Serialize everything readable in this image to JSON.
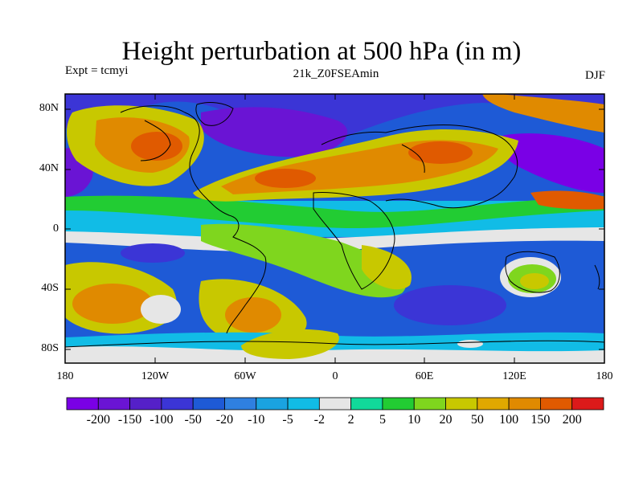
{
  "title": "Height perturbation at 500 hPa (in m)",
  "left_subtitle": "Expt = tcmyi",
  "center_subtitle": "21k_Z0FSEAmin",
  "right_subtitle": "DJF",
  "map": {
    "lat_labels": [
      "80N",
      "40N",
      "0",
      "40S",
      "80S"
    ],
    "lon_labels": [
      "180",
      "120W",
      "60W",
      "0",
      "60E",
      "120E",
      "180"
    ]
  },
  "colorbar": {
    "colors": [
      "#7a00e6",
      "#6a14d4",
      "#5520c8",
      "#3b35d6",
      "#1e5ad6",
      "#2f80e0",
      "#1aa3e0",
      "#11bce6",
      "#e6e6e6",
      "#11d99a",
      "#22cc33",
      "#7fd61e",
      "#c8c800",
      "#e0a800",
      "#e08a00",
      "#e05a00",
      "#dc1a1a"
    ],
    "labels": [
      "-200",
      "-150",
      "-100",
      "-50",
      "-20",
      "-10",
      "-5",
      "-2",
      "2",
      "5",
      "10",
      "20",
      "50",
      "100",
      "150",
      "200"
    ]
  },
  "colors": {
    "strong_negative": "#6a14d4",
    "negative": "#1e5ad6",
    "weak_negative": "#11bce6",
    "near_zero": "#e6e6e6",
    "weak_positive": "#11d99a",
    "positive": "#c8c800",
    "strong_positive": "#e05a00"
  }
}
